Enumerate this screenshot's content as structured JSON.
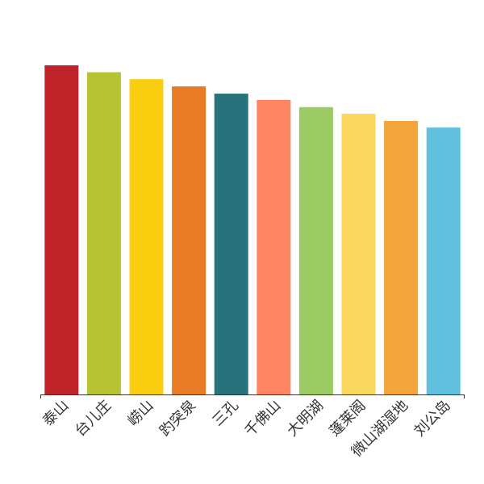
{
  "chart_data": {
    "type": "bar",
    "categories": [
      "泰山",
      "台儿庄",
      "崂山",
      "趵突泉",
      "三孔",
      "千佛山",
      "大明湖",
      "蓬莱阁",
      "微山湖湿地",
      "刘公岛"
    ],
    "values": [
      100,
      97.9,
      95.8,
      93.6,
      91.4,
      89.5,
      87.3,
      85.3,
      83.1,
      81.1
    ],
    "colors": [
      "#c1232b",
      "#b5c334",
      "#fcce10",
      "#e87c25",
      "#27727b",
      "#fe8463",
      "#9bca63",
      "#fad860",
      "#f3a43b",
      "#60c0dd"
    ],
    "ylim": [
      0,
      100
    ]
  }
}
